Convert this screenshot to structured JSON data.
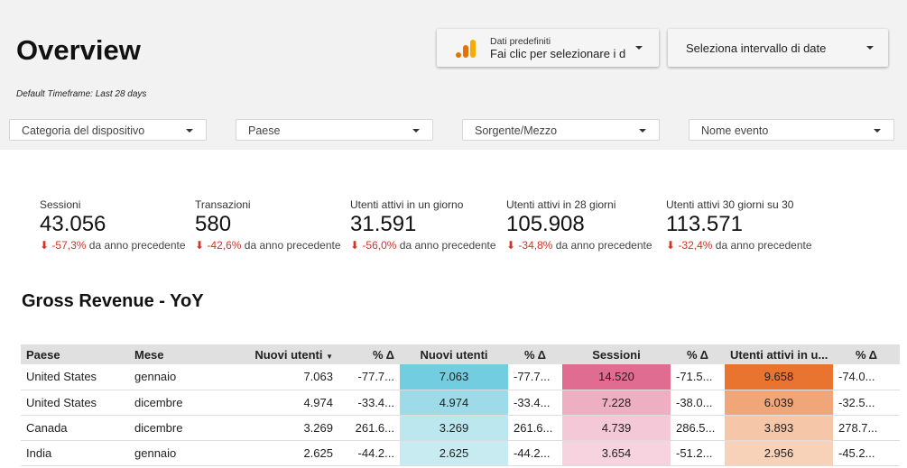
{
  "header": {
    "title": "Overview",
    "subtitle": "Default Timeframe: Last 28 days"
  },
  "data_source": {
    "label": "Dati predefiniti",
    "value": "Fai clic per selezionare i dat",
    "icon": "analytics-bars-icon",
    "colors": [
      "#e37400",
      "#f9ab00"
    ]
  },
  "date_range": {
    "label": "Seleziona intervallo di date"
  },
  "filters": [
    "Categoria del dispositivo",
    "Paese",
    "Sorgente/Mezzo",
    "Nome evento"
  ],
  "kpis": [
    {
      "label": "Sessioni",
      "value": "43.056",
      "delta": "-57,3%",
      "suffix": "da anno precedente"
    },
    {
      "label": "Transazioni",
      "value": "580",
      "delta": "-42,6%",
      "suffix": "da anno precedente"
    },
    {
      "label": "Utenti attivi in un giorno",
      "value": "31.591",
      "delta": "-56,0%",
      "suffix": "da anno precedente"
    },
    {
      "label": "Utenti attivi in 28 giorni",
      "value": "105.908",
      "delta": "-34,8%",
      "suffix": "da anno precedente"
    },
    {
      "label": "Utenti attivi 30 giorni su 30",
      "value": "113.571",
      "delta": "-32,4%",
      "suffix": "da anno precedente"
    }
  ],
  "table": {
    "title": "Gross Revenue - YoY",
    "columns": [
      "Paese",
      "Mese",
      "Nuovi utenti",
      "% Δ",
      "Nuovi utenti",
      "% Δ",
      "Sessioni",
      "% Δ",
      "Utenti attivi in u...",
      "% Δ"
    ],
    "rows": [
      [
        "United States",
        "gennaio",
        "7.063",
        "-77.7...",
        "7.063",
        "-77.7...",
        "14.520",
        "-71.5...",
        "9.658",
        "-74.0..."
      ],
      [
        "United States",
        "dicembre",
        "4.974",
        "-33.4...",
        "4.974",
        "-33.4...",
        "7.228",
        "-38.0...",
        "6.039",
        "-32.5..."
      ],
      [
        "Canada",
        "dicembre",
        "3.269",
        "261.6...",
        "3.269",
        "261.6...",
        "4.739",
        "286.5...",
        "3.893",
        "278.7..."
      ],
      [
        "India",
        "gennaio",
        "2.625",
        "-44.2...",
        "2.625",
        "-44.2...",
        "3.654",
        "-51.2...",
        "2.956",
        "-45.2..."
      ]
    ],
    "heat_colors": {
      "col4": [
        "#72cde0",
        "#9ddbe8",
        "#bde7ef",
        "#c8ebf2"
      ],
      "col6": [
        "#e06c92",
        "#eeafc3",
        "#f4c8d6",
        "#f7d3df"
      ],
      "col8": [
        "#e8742f",
        "#f0a679",
        "#f5c6a7",
        "#f7d2b9"
      ]
    }
  }
}
